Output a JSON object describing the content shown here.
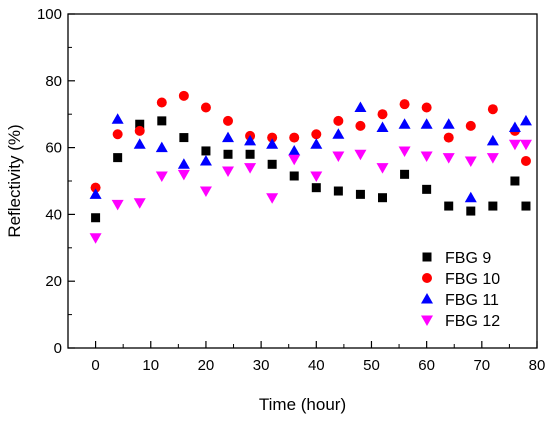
{
  "chart_data": {
    "type": "scatter",
    "xlabel": "Time (hour)",
    "ylabel": "Reflectivity (%)",
    "xlim": [
      -5,
      80
    ],
    "ylim": [
      0,
      100
    ],
    "x_ticks": [
      0,
      10,
      20,
      30,
      40,
      50,
      60,
      70,
      80
    ],
    "y_ticks": [
      0,
      20,
      40,
      60,
      80,
      100
    ],
    "legend_position": "bottom-right",
    "series": [
      {
        "name": "FBG 9",
        "marker": "square",
        "color": "#000000",
        "x": [
          0,
          4,
          8,
          12,
          16,
          20,
          24,
          28,
          32,
          36,
          40,
          44,
          48,
          52,
          56,
          60,
          64,
          68,
          72,
          76,
          78
        ],
        "y": [
          39,
          57,
          67,
          68,
          63,
          59,
          58,
          58,
          55,
          51.5,
          48,
          47,
          46,
          45,
          52,
          47.5,
          42.5,
          41,
          42.5,
          50,
          42.5
        ]
      },
      {
        "name": "FBG 10",
        "marker": "circle",
        "color": "#ff0000",
        "x": [
          0,
          4,
          8,
          12,
          16,
          20,
          24,
          28,
          32,
          36,
          40,
          44,
          48,
          52,
          56,
          60,
          64,
          68,
          72,
          76,
          78
        ],
        "y": [
          48,
          64,
          65,
          73.5,
          75.5,
          72,
          68,
          63.5,
          63,
          63,
          64,
          68,
          66.5,
          70,
          73,
          72,
          63,
          66.5,
          71.5,
          65,
          56
        ]
      },
      {
        "name": "FBG 11",
        "marker": "triangle-up",
        "color": "#0000ff",
        "x": [
          0,
          4,
          8,
          12,
          16,
          20,
          24,
          28,
          32,
          36,
          40,
          44,
          48,
          52,
          56,
          60,
          64,
          68,
          72,
          76,
          78
        ],
        "y": [
          46,
          68.5,
          61,
          60,
          55,
          56,
          63,
          62,
          61,
          59,
          61,
          64,
          72,
          66,
          67,
          67,
          67,
          45,
          62,
          66,
          68
        ]
      },
      {
        "name": "FBG 12",
        "marker": "triangle-down",
        "color": "#ff00ff",
        "x": [
          0,
          4,
          8,
          12,
          16,
          20,
          24,
          28,
          32,
          36,
          40,
          44,
          48,
          52,
          56,
          60,
          64,
          68,
          72,
          76,
          78
        ],
        "y": [
          33,
          43,
          43.5,
          51.5,
          52,
          47,
          53,
          54,
          45,
          56.5,
          51.5,
          57.5,
          58,
          54,
          59,
          57.5,
          57,
          56,
          57,
          61,
          61
        ]
      }
    ]
  }
}
